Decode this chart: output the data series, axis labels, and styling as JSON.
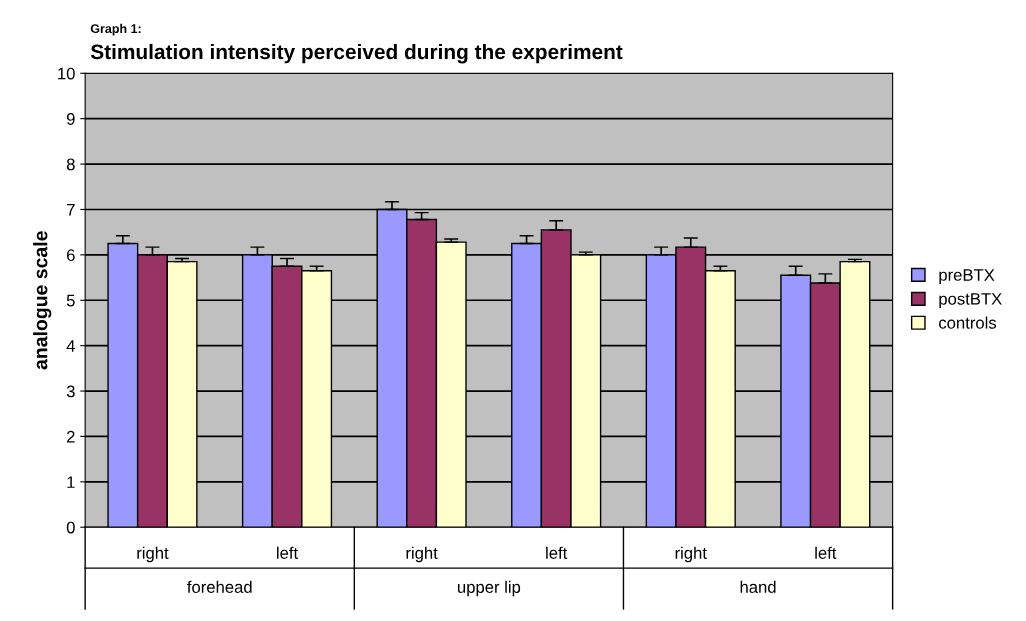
{
  "chart_data": {
    "type": "bar",
    "subtitle": "Graph 1:",
    "title": "Stimulation intensity perceived during the experiment",
    "ylabel": "analogue scale",
    "categories": [
      "right",
      "left",
      "right",
      "left",
      "right",
      "left"
    ],
    "annotations": [
      "forehead",
      "upper lip",
      "hand"
    ],
    "series": [
      {
        "name": "preBTX",
        "color": "#9999ff",
        "values": [
          6.25,
          6.0,
          7.0,
          6.25,
          6.0,
          5.55
        ],
        "errors": [
          0.17,
          0.17,
          0.17,
          0.17,
          0.17,
          0.2
        ]
      },
      {
        "name": "postBTX",
        "color": "#993366",
        "values": [
          6.0,
          5.75,
          6.78,
          6.55,
          6.17,
          5.38
        ],
        "errors": [
          0.17,
          0.17,
          0.15,
          0.2,
          0.2,
          0.2
        ]
      },
      {
        "name": "controls",
        "color": "#ffffcc",
        "values": [
          5.85,
          5.65,
          6.28,
          6.0,
          5.65,
          5.85
        ],
        "errors": [
          0.07,
          0.1,
          0.07,
          0.06,
          0.1,
          0.05
        ]
      }
    ],
    "ylim": [
      0,
      10
    ],
    "yticks": [
      0,
      1,
      2,
      3,
      4,
      5,
      6,
      7,
      8,
      9,
      10
    ],
    "grid": "y",
    "legend": "right"
  }
}
